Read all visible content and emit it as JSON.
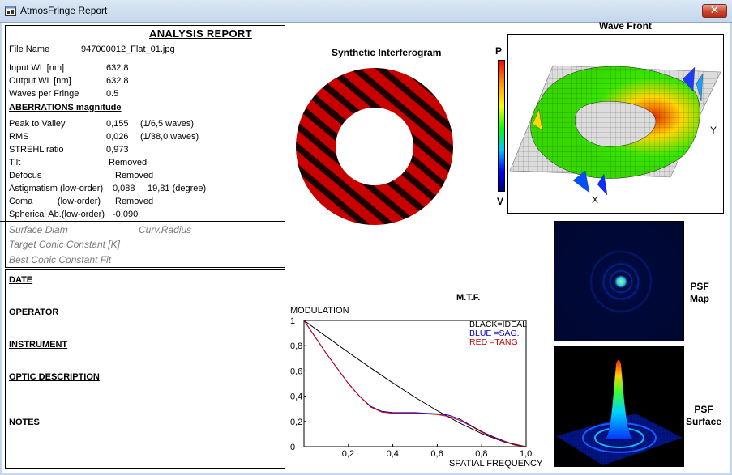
{
  "window": {
    "title": "AtmosFringe  Report",
    "close_label": "✕"
  },
  "report": {
    "title": "ANALYSIS  REPORT",
    "file_name_label": "File Name",
    "file_name": "947000012_Flat_01.jpg",
    "input_wl_label": "Input  WL [nm]",
    "input_wl": "632.8",
    "output_wl_label": "Output WL [nm]",
    "output_wl": "632.8",
    "waves_per_fringe_label": "Waves per Fringe",
    "waves_per_fringe": "0.5",
    "aberrations_heading": "ABERRATIONS magnitude",
    "rows": [
      {
        "label": "Peak to Valley",
        "value": "0,155",
        "extra": "(1/6,5 waves)"
      },
      {
        "label": "RMS",
        "value": "0,026",
        "extra": "(1/38,0 waves)"
      },
      {
        "label": "STREHL ratio",
        "value": "0,973",
        "extra": ""
      },
      {
        "label": "Tilt",
        "value": "Removed",
        "extra": ""
      },
      {
        "label": "Defocus",
        "value": "Removed",
        "extra": ""
      },
      {
        "label": "Astigmatism  (low-order)",
        "value": "0,088",
        "extra": "19,81  (degree)"
      },
      {
        "label": "Coma          (low-order)",
        "value": "Removed",
        "extra": ""
      },
      {
        "label": "Spherical Ab.(low-order)",
        "value": "-0,090",
        "extra": ""
      }
    ],
    "surface_diam": "Surface Diam",
    "curv_radius": "Curv.Radius",
    "target_conic": "Target Conic Constant [K]",
    "best_conic": "Best Conic Constant Fit"
  },
  "notes": {
    "date": "DATE",
    "operator": "OPERATOR",
    "instrument": "INSTRUMENT",
    "optic_description": "OPTIC DESCRIPTION",
    "notes": "NOTES"
  },
  "interferogram": {
    "title": "Synthetic Interferogram"
  },
  "wavefront": {
    "title": "Wave Front",
    "scale_top": "P",
    "scale_bottom": "V",
    "axis_y": "Y",
    "axis_x": "X"
  },
  "psf": {
    "map_label_1": "PSF",
    "map_label_2": "Map",
    "surface_label_1": "PSF",
    "surface_label_2": "Surface"
  },
  "chart_data": {
    "type": "line",
    "title": "M.T.F.",
    "ylabel": "MODULATION",
    "xlabel": "SPATIAL FREQUENCY",
    "xlim": [
      0,
      1
    ],
    "ylim": [
      0,
      1
    ],
    "x_ticks": [
      "0,2",
      "0,4",
      "0,6",
      "0,8",
      "1,0"
    ],
    "y_ticks": [
      "0",
      "0,2",
      "0,4",
      "0,6",
      "0,8",
      "1"
    ],
    "legend": [
      {
        "text": "BLACK=IDEAL",
        "color": "#000000"
      },
      {
        "text": "BLUE  =SAG.",
        "color": "#0000c8"
      },
      {
        "text": "RED    =TANG",
        "color": "#c80000"
      }
    ],
    "series": [
      {
        "name": "IDEAL",
        "color": "#000000",
        "x": [
          0,
          0.05,
          0.1,
          0.2,
          0.3,
          0.4,
          0.5,
          0.6,
          0.7,
          0.8,
          0.9,
          1.0
        ],
        "y": [
          1.0,
          0.936,
          0.873,
          0.747,
          0.624,
          0.505,
          0.391,
          0.285,
          0.188,
          0.104,
          0.037,
          0.0
        ]
      },
      {
        "name": "SAG.",
        "color": "#0000c8",
        "x": [
          0,
          0.05,
          0.1,
          0.15,
          0.2,
          0.25,
          0.3,
          0.35,
          0.4,
          0.45,
          0.5,
          0.55,
          0.6,
          0.65,
          0.7,
          0.75,
          0.8,
          0.85,
          0.9,
          0.95,
          1.0
        ],
        "y": [
          1.0,
          0.87,
          0.74,
          0.62,
          0.5,
          0.4,
          0.32,
          0.28,
          0.27,
          0.27,
          0.27,
          0.265,
          0.26,
          0.25,
          0.22,
          0.17,
          0.12,
          0.08,
          0.045,
          0.015,
          0.0
        ]
      },
      {
        "name": "TANG",
        "color": "#c80000",
        "x": [
          0,
          0.05,
          0.1,
          0.15,
          0.2,
          0.25,
          0.3,
          0.35,
          0.4,
          0.45,
          0.5,
          0.55,
          0.6,
          0.65,
          0.7,
          0.75,
          0.8,
          0.85,
          0.9,
          0.95,
          1.0
        ],
        "y": [
          1.0,
          0.87,
          0.74,
          0.62,
          0.5,
          0.4,
          0.315,
          0.275,
          0.265,
          0.265,
          0.265,
          0.26,
          0.255,
          0.24,
          0.21,
          0.165,
          0.115,
          0.075,
          0.04,
          0.012,
          0.0
        ]
      }
    ]
  }
}
